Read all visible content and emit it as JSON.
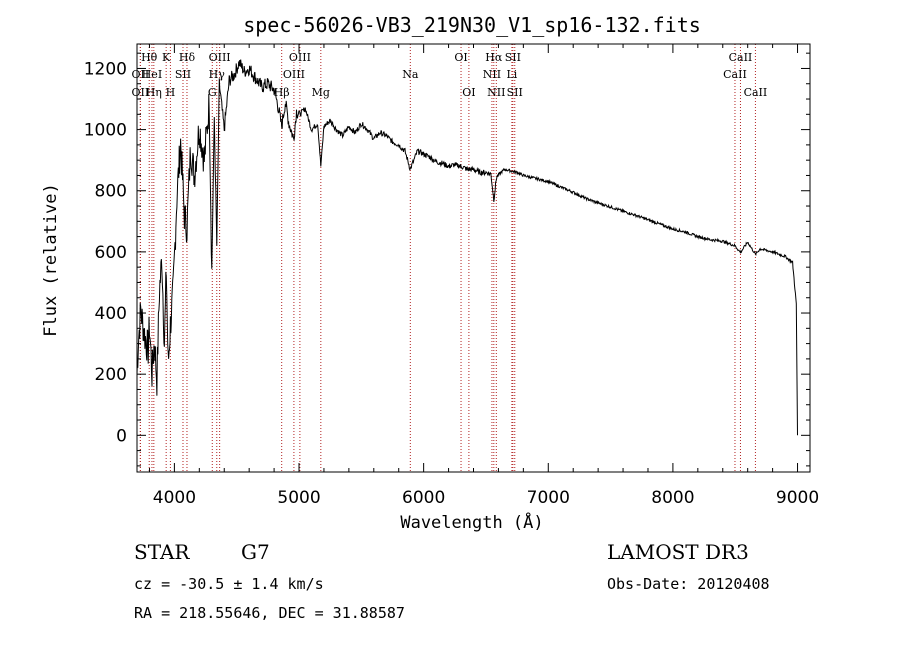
{
  "chart_data": {
    "type": "line",
    "title": "spec-56026-VB3_219N30_V1_sp16-132.fits",
    "xlabel": "Wavelength (Å)",
    "ylabel": "Flux (relative)",
    "xlim": [
      3700,
      9100
    ],
    "ylim": [
      -120,
      1280
    ],
    "xticks": [
      4000,
      5000,
      6000,
      7000,
      8000,
      9000
    ],
    "yticks": [
      0,
      200,
      400,
      600,
      800,
      1000,
      1200
    ],
    "grid": false,
    "line_color": "#000000",
    "marker_color": "#b22222",
    "series": [
      {
        "name": "flux",
        "x": [
          3700,
          3710,
          3730,
          3760,
          3790,
          3800,
          3820,
          3840,
          3860,
          3880,
          3900,
          3920,
          3935,
          3950,
          3968,
          3990,
          4020,
          4050,
          4080,
          4101,
          4130,
          4160,
          4200,
          4240,
          4280,
          4300,
          4320,
          4340,
          4360,
          4400,
          4440,
          4480,
          4520,
          4560,
          4600,
          4650,
          4700,
          4750,
          4800,
          4830,
          4861,
          4890,
          4920,
          4957,
          4980,
          5007,
          5050,
          5100,
          5150,
          5175,
          5200,
          5250,
          5300,
          5350,
          5400,
          5450,
          5500,
          5550,
          5600,
          5650,
          5700,
          5750,
          5800,
          5850,
          5893,
          5950,
          6000,
          6050,
          6100,
          6150,
          6200,
          6250,
          6300,
          6350,
          6400,
          6450,
          6500,
          6540,
          6563,
          6585,
          6620,
          6650,
          6700,
          6750,
          6800,
          6900,
          7000,
          7100,
          7200,
          7300,
          7400,
          7500,
          7600,
          7700,
          7800,
          7900,
          8000,
          8100,
          8200,
          8300,
          8400,
          8498,
          8542,
          8600,
          8662,
          8700,
          8800,
          8900,
          8960,
          8990,
          9000
        ],
        "values": [
          200,
          300,
          410,
          330,
          280,
          360,
          200,
          310,
          180,
          470,
          580,
          300,
          540,
          230,
          360,
          470,
          780,
          960,
          720,
          680,
          940,
          850,
          1010,
          900,
          1090,
          540,
          1040,
          620,
          1150,
          1000,
          1160,
          1180,
          1220,
          1190,
          1200,
          1170,
          1140,
          1150,
          1130,
          1080,
          1010,
          1090,
          1020,
          970,
          1060,
          1050,
          1070,
          1000,
          1020,
          880,
          1010,
          1030,
          1000,
          980,
          1010,
          990,
          1020,
          1000,
          970,
          990,
          980,
          960,
          950,
          930,
          870,
          930,
          920,
          910,
          895,
          890,
          880,
          885,
          880,
          870,
          870,
          860,
          860,
          855,
          770,
          845,
          860,
          870,
          865,
          860,
          850,
          840,
          830,
          812,
          795,
          775,
          760,
          747,
          733,
          720,
          705,
          690,
          675,
          665,
          650,
          640,
          635,
          620,
          598,
          632,
          592,
          610,
          600,
          585,
          565,
          430,
          0
        ]
      }
    ],
    "lines": [
      {
        "label": "Hθ",
        "x": 3798,
        "row": 0
      },
      {
        "label": "OII",
        "x": 3727,
        "row": 1
      },
      {
        "label": "OII",
        "x": 3727,
        "row": 2
      },
      {
        "label": "HeI",
        "x": 3820,
        "row": 1
      },
      {
        "label": "Hη",
        "x": 3835,
        "row": 2
      },
      {
        "label": "K",
        "x": 3934,
        "row": 0
      },
      {
        "label": "SII",
        "x": 4069,
        "row": 1
      },
      {
        "label": "H",
        "x": 3968,
        "row": 2
      },
      {
        "label": "Hδ",
        "x": 4101,
        "row": 0
      },
      {
        "label": "OIII",
        "x": 4363,
        "row": 0
      },
      {
        "label": "Hγ",
        "x": 4340,
        "row": 1
      },
      {
        "label": "G",
        "x": 4304,
        "row": 2
      },
      {
        "label": "OIII",
        "x": 5007,
        "row": 0
      },
      {
        "label": "OIII",
        "x": 4959,
        "row": 1
      },
      {
        "label": "Hβ",
        "x": 4861,
        "row": 2
      },
      {
        "label": "Mg",
        "x": 5175,
        "row": 2
      },
      {
        "label": "Na",
        "x": 5893,
        "row": 1
      },
      {
        "label": "OI",
        "x": 6300,
        "row": 0
      },
      {
        "label": "OI",
        "x": 6363,
        "row": 2
      },
      {
        "label": "Hα",
        "x": 6563,
        "row": 0
      },
      {
        "label": "SII",
        "x": 6716,
        "row": 0
      },
      {
        "label": "NII",
        "x": 6548,
        "row": 1
      },
      {
        "label": "Li",
        "x": 6708,
        "row": 1
      },
      {
        "label": "NII",
        "x": 6583,
        "row": 2
      },
      {
        "label": "SII",
        "x": 6731,
        "row": 2
      },
      {
        "label": "CaII",
        "x": 8542,
        "row": 0
      },
      {
        "label": "CaII",
        "x": 8498,
        "row": 1
      },
      {
        "label": "CaII",
        "x": 8662,
        "row": 2
      }
    ]
  },
  "info": {
    "object_class": "STAR",
    "subclass": "G7",
    "survey": "LAMOST DR3",
    "redshift": "cz = -30.5 ± 1.4 km/s",
    "obs_date": "Obs-Date: 20120408",
    "coords": "RA = 218.55646, DEC =  31.88587"
  }
}
